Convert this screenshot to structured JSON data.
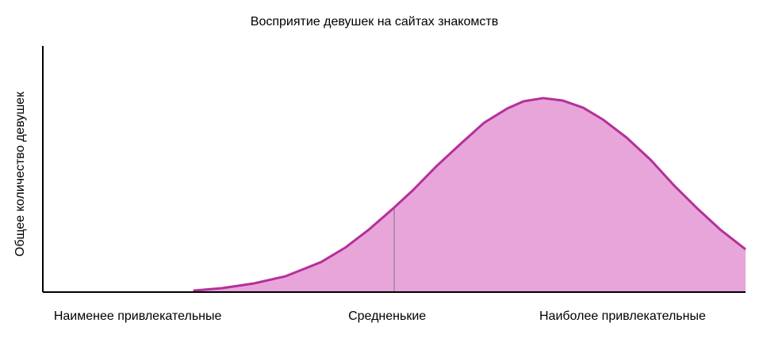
{
  "chart_data": {
    "type": "area",
    "title": "Восприятие девушек на сайтах знакомств",
    "ylabel": "Общее количество девушек",
    "x": [
      21.4,
      25.5,
      30.0,
      34.5,
      39.6,
      43.0,
      46.4,
      49.9,
      52.6,
      56.0,
      59.4,
      62.8,
      66.1,
      68.4,
      71.2,
      74.0,
      76.9,
      79.7,
      83.1,
      86.5,
      89.8,
      93.2,
      96.4,
      100
    ],
    "values": [
      0.6,
      1.6,
      3.5,
      6.4,
      12.2,
      18.0,
      25.4,
      34.1,
      41.2,
      51.1,
      60.1,
      68.8,
      74.6,
      77.5,
      78.8,
      77.8,
      74.9,
      70.1,
      62.7,
      53.7,
      43.4,
      33.8,
      25.4,
      17.4
    ],
    "color": "#e8a5d9",
    "line_color": "#b5309a",
    "xlim": [
      0,
      100
    ],
    "ylim": [
      0,
      100
    ],
    "xticks": [
      {
        "value": 13.5,
        "label": "Наименее привлекательные"
      },
      {
        "value": 49,
        "label": "Средненькие"
      },
      {
        "value": 82.5,
        "label": "Наиболее привлекательные"
      }
    ],
    "reference_x": 50
  }
}
